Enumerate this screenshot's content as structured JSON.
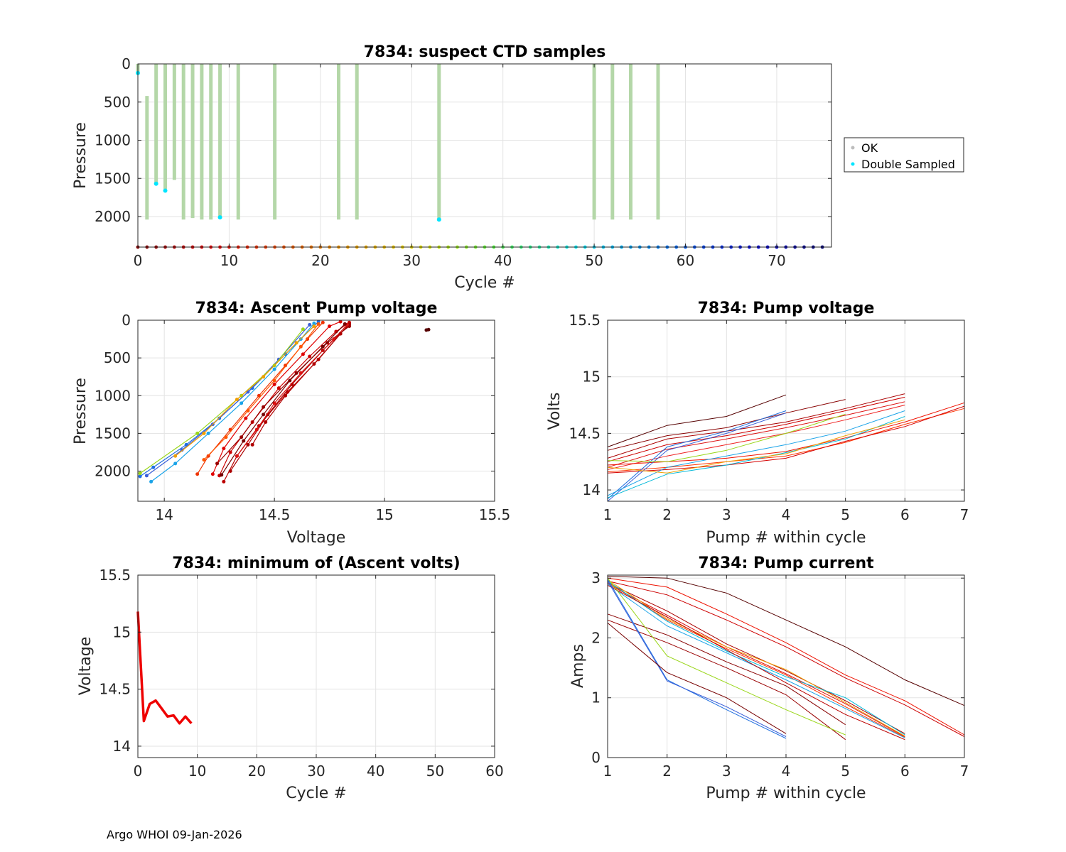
{
  "footer": "Argo WHOI 09-Jan-2026",
  "colors": {
    "ok": "#b4d7a8",
    "double_sampled": "#00e5ff",
    "grid": "#e3e3e3",
    "axis": "#262626",
    "minvolt": "#ee0000"
  },
  "chart_data": [
    {
      "id": "ctd",
      "type": "scatter",
      "title": "7834: suspect CTD samples",
      "xlabel": "Cycle #",
      "ylabel": "Pressure",
      "xlim": [
        0,
        76
      ],
      "ylim": [
        2400,
        0
      ],
      "y_reversed": true,
      "xticks": [
        0,
        10,
        20,
        30,
        40,
        50,
        60,
        70
      ],
      "yticks": [
        0,
        500,
        1000,
        1500,
        2000
      ],
      "grid": true,
      "legend": {
        "position": "outside-right",
        "entries": [
          "OK",
          "Double Sampled"
        ]
      },
      "ok_profiles": [
        {
          "cycle": 0,
          "top": 0,
          "bottom": 120
        },
        {
          "cycle": 1,
          "top": 420,
          "bottom": 2040
        },
        {
          "cycle": 2,
          "top": 0,
          "bottom": 1560
        },
        {
          "cycle": 3,
          "top": 0,
          "bottom": 1640
        },
        {
          "cycle": 4,
          "top": 0,
          "bottom": 1520
        },
        {
          "cycle": 5,
          "top": 0,
          "bottom": 2040
        },
        {
          "cycle": 6,
          "top": 0,
          "bottom": 2020
        },
        {
          "cycle": 7,
          "top": 0,
          "bottom": 2040
        },
        {
          "cycle": 8,
          "top": 0,
          "bottom": 2040
        },
        {
          "cycle": 9,
          "top": 0,
          "bottom": 2000
        },
        {
          "cycle": 11,
          "top": 0,
          "bottom": 2040
        },
        {
          "cycle": 15,
          "top": 0,
          "bottom": 2040
        },
        {
          "cycle": 22,
          "top": 0,
          "bottom": 2040
        },
        {
          "cycle": 24,
          "top": 0,
          "bottom": 2040
        },
        {
          "cycle": 33,
          "top": 0,
          "bottom": 2030
        },
        {
          "cycle": 50,
          "top": 0,
          "bottom": 2040
        },
        {
          "cycle": 52,
          "top": 0,
          "bottom": 2040
        },
        {
          "cycle": 54,
          "top": 0,
          "bottom": 2040
        },
        {
          "cycle": 57,
          "top": 0,
          "bottom": 2040
        }
      ],
      "double_sampled": [
        {
          "cycle": 0,
          "pressure": 120
        },
        {
          "cycle": 2,
          "pressure": 1570
        },
        {
          "cycle": 3,
          "pressure": 1660
        },
        {
          "cycle": 9,
          "pressure": 2010
        },
        {
          "cycle": 33,
          "pressure": 2040
        }
      ],
      "cycle_markers": {
        "start": 0,
        "end": 75,
        "pressure": 2400
      }
    },
    {
      "id": "ascent",
      "type": "line",
      "title": "7834: Ascent Pump voltage",
      "xlabel": "Voltage",
      "ylabel": "Pressure",
      "xlim": [
        13.88,
        15.5
      ],
      "ylim": [
        2400,
        0
      ],
      "y_reversed": true,
      "xticks": [
        14,
        14.5,
        15,
        15.5
      ],
      "xtick_labels": [
        "14",
        "14.5",
        "15",
        "15.5"
      ],
      "yticks": [
        0,
        500,
        1000,
        1500,
        2000
      ],
      "grid": true,
      "series": [
        {
          "color": "#1f6fe0",
          "points": [
            [
              13.89,
              2070
            ],
            [
              13.95,
              1950
            ],
            [
              14.1,
              1650
            ],
            [
              14.25,
              1300
            ],
            [
              14.4,
              900
            ],
            [
              14.55,
              450
            ],
            [
              14.7,
              20
            ]
          ]
        },
        {
          "color": "#1aa3e8",
          "points": [
            [
              13.94,
              2140
            ],
            [
              14.05,
              1900
            ],
            [
              14.2,
              1500
            ],
            [
              14.35,
              1100
            ],
            [
              14.5,
              650
            ],
            [
              14.62,
              250
            ],
            [
              14.68,
              40
            ]
          ]
        },
        {
          "color": "#3a5fd8",
          "points": [
            [
              13.92,
              2060
            ],
            [
              14.08,
              1720
            ],
            [
              14.22,
              1380
            ],
            [
              14.38,
              950
            ],
            [
              14.52,
              520
            ],
            [
              14.66,
              60
            ]
          ]
        },
        {
          "color": "#9ad61a",
          "points": [
            [
              13.89,
              2030
            ],
            [
              14.15,
              1500
            ],
            [
              14.35,
              1000
            ],
            [
              14.5,
              600
            ],
            [
              14.63,
              120
            ]
          ]
        },
        {
          "color": "#f0a000",
          "points": [
            [
              14.05,
              1800
            ],
            [
              14.18,
              1500
            ],
            [
              14.33,
              1050
            ],
            [
              14.45,
              750
            ],
            [
              14.6,
              300
            ],
            [
              14.68,
              80
            ]
          ]
        },
        {
          "color": "#ee3300",
          "points": [
            [
              14.15,
              2040
            ],
            [
              14.2,
              1800
            ],
            [
              14.3,
              1450
            ],
            [
              14.43,
              1000
            ],
            [
              14.55,
              600
            ],
            [
              14.65,
              250
            ],
            [
              14.72,
              30
            ]
          ]
        },
        {
          "color": "#ff5500",
          "points": [
            [
              14.18,
              1850
            ],
            [
              14.28,
              1550
            ],
            [
              14.38,
              1200
            ],
            [
              14.5,
              800
            ],
            [
              14.62,
              350
            ],
            [
              14.7,
              50
            ]
          ]
        },
        {
          "color": "#e00000",
          "points": [
            [
              14.22,
              2040
            ],
            [
              14.27,
              1700
            ],
            [
              14.37,
              1300
            ],
            [
              14.5,
              850
            ],
            [
              14.63,
              450
            ],
            [
              14.75,
              80
            ],
            [
              14.8,
              20
            ]
          ]
        },
        {
          "color": "#cc0000",
          "points": [
            [
              14.25,
              2060
            ],
            [
              14.3,
              1750
            ],
            [
              14.4,
              1350
            ],
            [
              14.52,
              900
            ],
            [
              14.66,
              480
            ],
            [
              14.78,
              150
            ],
            [
              14.84,
              30
            ]
          ]
        },
        {
          "color": "#bb0000",
          "points": [
            [
              14.27,
              2140
            ],
            [
              14.33,
              1800
            ],
            [
              14.43,
              1400
            ],
            [
              14.56,
              950
            ],
            [
              14.7,
              520
            ],
            [
              14.8,
              180
            ],
            [
              14.84,
              40
            ]
          ]
        },
        {
          "color": "#aa0000",
          "points": [
            [
              14.3,
              2000
            ],
            [
              14.38,
              1650
            ],
            [
              14.47,
              1250
            ],
            [
              14.58,
              850
            ],
            [
              14.72,
              400
            ],
            [
              14.84,
              60
            ]
          ]
        },
        {
          "color": "#990000",
          "points": [
            [
              14.24,
              1900
            ],
            [
              14.35,
              1550
            ],
            [
              14.45,
              1150
            ],
            [
              14.6,
              700
            ],
            [
              14.74,
              300
            ],
            [
              14.84,
              80
            ]
          ]
        },
        {
          "color": "#dd1111",
          "points": [
            [
              14.33,
              1800
            ],
            [
              14.42,
              1450
            ],
            [
              14.5,
              1100
            ],
            [
              14.62,
              700
            ],
            [
              14.77,
              250
            ],
            [
              14.83,
              60
            ]
          ]
        },
        {
          "color": "#b00000",
          "points": [
            [
              14.4,
              1650
            ],
            [
              14.46,
              1350
            ],
            [
              14.55,
              1000
            ],
            [
              14.68,
              580
            ],
            [
              14.8,
              180
            ]
          ]
        },
        {
          "color": "#770000",
          "points": [
            [
              14.26,
              2050
            ],
            [
              14.36,
              1600
            ],
            [
              14.45,
              1250
            ],
            [
              14.57,
              800
            ],
            [
              14.72,
              350
            ],
            [
              14.82,
              50
            ]
          ]
        },
        {
          "color": "#550000",
          "points": [
            [
              15.19,
              130
            ],
            [
              15.2,
              125
            ]
          ]
        }
      ]
    },
    {
      "id": "pumpvolt",
      "type": "line",
      "title": "7834: Pump voltage",
      "xlabel": "Pump # within cycle",
      "ylabel": "Volts",
      "xlim": [
        1,
        7
      ],
      "ylim": [
        13.9,
        15.5
      ],
      "xticks": [
        1,
        2,
        3,
        4,
        5,
        6,
        7
      ],
      "yticks": [
        14,
        14.5,
        15,
        15.5
      ],
      "ytick_labels": [
        "14",
        "14.5",
        "15",
        "15.5"
      ],
      "grid": true,
      "series": [
        {
          "color": "#550000",
          "values": [
            14.38,
            14.57,
            14.65,
            14.84
          ]
        },
        {
          "color": "#880000",
          "values": [
            14.35,
            14.48,
            14.55,
            14.68,
            14.8
          ]
        },
        {
          "color": "#aa0000",
          "values": [
            14.28,
            14.45,
            14.52,
            14.6,
            14.72,
            14.85
          ]
        },
        {
          "color": "#cc0000",
          "values": [
            14.25,
            14.4,
            14.48,
            14.58,
            14.7,
            14.82
          ]
        },
        {
          "color": "#dd1111",
          "values": [
            14.2,
            14.36,
            14.45,
            14.55,
            14.66,
            14.78
          ]
        },
        {
          "color": "#ee2222",
          "values": [
            14.18,
            14.3,
            14.4,
            14.5,
            14.62,
            14.75
          ]
        },
        {
          "color": "#ff3300",
          "values": [
            14.16,
            14.2,
            14.25,
            14.3,
            14.42,
            14.58,
            14.72
          ]
        },
        {
          "color": "#ee1100",
          "values": [
            14.22,
            14.25,
            14.28,
            14.34,
            14.46,
            14.6,
            14.77
          ]
        },
        {
          "color": "#d40000",
          "values": [
            14.15,
            14.18,
            14.22,
            14.28,
            14.43,
            14.56,
            14.74
          ]
        },
        {
          "color": "#1f6fe0",
          "values": [
            13.92,
            14.38,
            14.52,
            14.7
          ]
        },
        {
          "color": "#3a5fd8",
          "values": [
            13.9,
            14.35,
            14.5,
            14.68
          ]
        },
        {
          "color": "#1aa3e8",
          "values": [
            13.95,
            14.2,
            14.3,
            14.4,
            14.52,
            14.7
          ]
        },
        {
          "color": "#00b8d8",
          "values": [
            13.93,
            14.14,
            14.22,
            14.33,
            14.45,
            14.65
          ]
        },
        {
          "color": "#9ad61a",
          "values": [
            14.26,
            14.25,
            14.35,
            14.5,
            14.67
          ]
        },
        {
          "color": "#f0a000",
          "values": [
            14.2,
            14.15,
            14.25,
            14.32,
            14.48,
            14.62
          ]
        }
      ]
    },
    {
      "id": "minvolt",
      "type": "line",
      "title": "7834: minimum of (Ascent volts)",
      "xlabel": "Cycle #",
      "ylabel": "Voltage",
      "xlim": [
        0,
        60
      ],
      "ylim": [
        13.9,
        15.5
      ],
      "xticks": [
        0,
        10,
        20,
        30,
        40,
        50,
        60
      ],
      "yticks": [
        14,
        14.5,
        15,
        15.5
      ],
      "ytick_labels": [
        "14",
        "14.5",
        "15",
        "15.5"
      ],
      "grid": true,
      "series": [
        {
          "color": "#ee0000",
          "x": [
            0,
            1,
            2,
            3,
            4,
            5,
            6,
            7,
            8,
            9
          ],
          "values": [
            15.18,
            14.22,
            14.37,
            14.4,
            14.33,
            14.26,
            14.27,
            14.2,
            14.26,
            14.2
          ]
        }
      ]
    },
    {
      "id": "pumpcurrent",
      "type": "line",
      "title": "7834: Pump current",
      "xlabel": "Pump # within cycle",
      "ylabel": "Amps",
      "xlim": [
        1,
        7
      ],
      "ylim": [
        0,
        3.05
      ],
      "xticks": [
        1,
        2,
        3,
        4,
        5,
        6,
        7
      ],
      "yticks": [
        0,
        1,
        2,
        3
      ],
      "grid": true,
      "series": [
        {
          "color": "#550000",
          "values": [
            3.03,
            3.0,
            2.75,
            2.3,
            1.85,
            1.3,
            0.87
          ]
        },
        {
          "color": "#ee1100",
          "values": [
            3.0,
            2.85,
            2.4,
            1.92,
            1.38,
            0.95,
            0.38
          ]
        },
        {
          "color": "#cc0000",
          "values": [
            2.95,
            2.72,
            2.3,
            1.85,
            1.33,
            0.88,
            0.35
          ]
        },
        {
          "color": "#aa0000",
          "values": [
            2.92,
            2.45,
            1.9,
            1.45,
            0.95,
            0.4
          ]
        },
        {
          "color": "#dd1111",
          "values": [
            2.9,
            2.38,
            1.85,
            1.4,
            0.9,
            0.35
          ]
        },
        {
          "color": "#ff3300",
          "values": [
            2.93,
            2.3,
            1.82,
            1.38,
            0.85,
            0.34
          ]
        },
        {
          "color": "#f0a000",
          "values": [
            2.97,
            2.32,
            1.85,
            1.47,
            0.92,
            0.36
          ]
        },
        {
          "color": "#00b8d8",
          "values": [
            2.95,
            2.28,
            1.78,
            1.35,
            1.0,
            0.38
          ]
        },
        {
          "color": "#1aa3e8",
          "values": [
            2.9,
            2.2,
            1.75,
            1.3,
            0.82,
            0.33
          ]
        },
        {
          "color": "#bb0000",
          "values": [
            2.88,
            2.35,
            1.8,
            1.25,
            0.72,
            0.3
          ]
        },
        {
          "color": "#880000",
          "values": [
            2.4,
            2.05,
            1.6,
            1.2,
            0.55
          ]
        },
        {
          "color": "#990000",
          "values": [
            2.3,
            1.92,
            1.5,
            1.05,
            0.3
          ]
        },
        {
          "color": "#9ad61a",
          "values": [
            3.0,
            1.7,
            1.25,
            0.8,
            0.38
          ]
        },
        {
          "color": "#1f6fe0",
          "values": [
            2.98,
            1.3,
            0.8,
            0.32
          ]
        },
        {
          "color": "#3a5fd8",
          "values": [
            2.95,
            1.28,
            0.85,
            0.35
          ]
        },
        {
          "color": "#770000",
          "values": [
            2.25,
            1.42,
            1.0,
            0.4
          ]
        }
      ]
    }
  ]
}
